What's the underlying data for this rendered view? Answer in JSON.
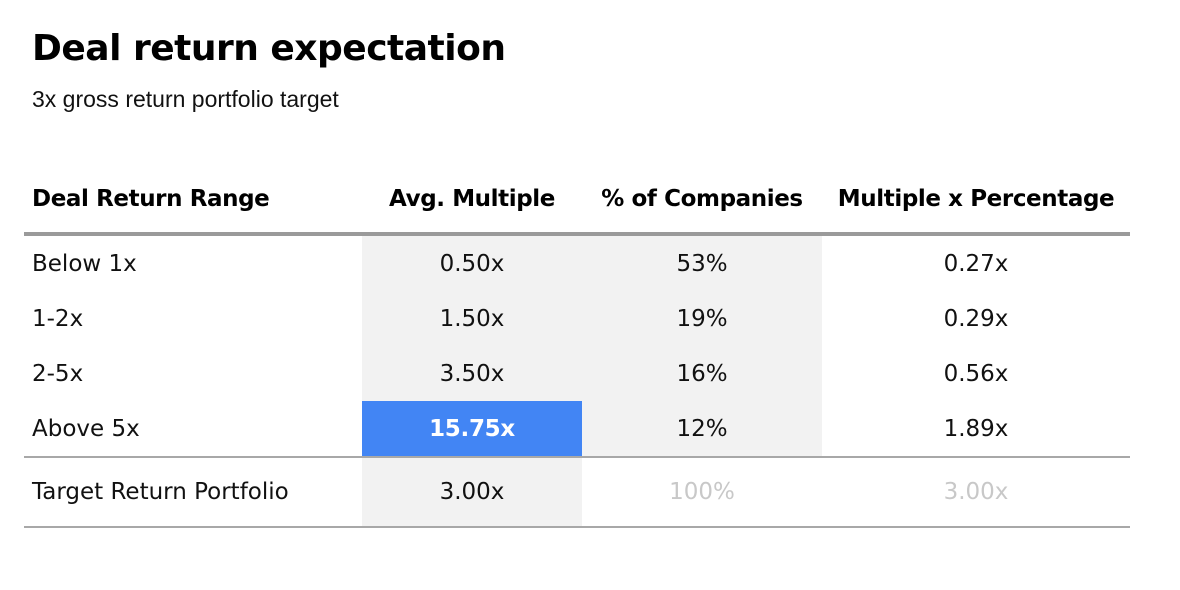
{
  "title": "Deal return expectation",
  "subtitle": "3x gross return portfolio target",
  "table": {
    "headers": [
      "Deal Return Range",
      "Avg. Multiple",
      "% of Companies",
      "Multiple x Percentage"
    ],
    "rows": [
      [
        "Below 1x",
        "0.50x",
        "53%",
        "0.27x"
      ],
      [
        "1-2x",
        "1.50x",
        "19%",
        "0.29x"
      ],
      [
        "2-5x",
        "3.50x",
        "16%",
        "0.56x"
      ],
      [
        "Above 5x",
        "15.75x",
        "12%",
        "1.89x"
      ]
    ],
    "total": [
      "Target Return Portfolio",
      "3.00x",
      "100%",
      "3.00x"
    ]
  },
  "colors": {
    "highlight": "#4285f4",
    "shade": "#f2f2f2",
    "muted_text": "#c8c8c8"
  }
}
